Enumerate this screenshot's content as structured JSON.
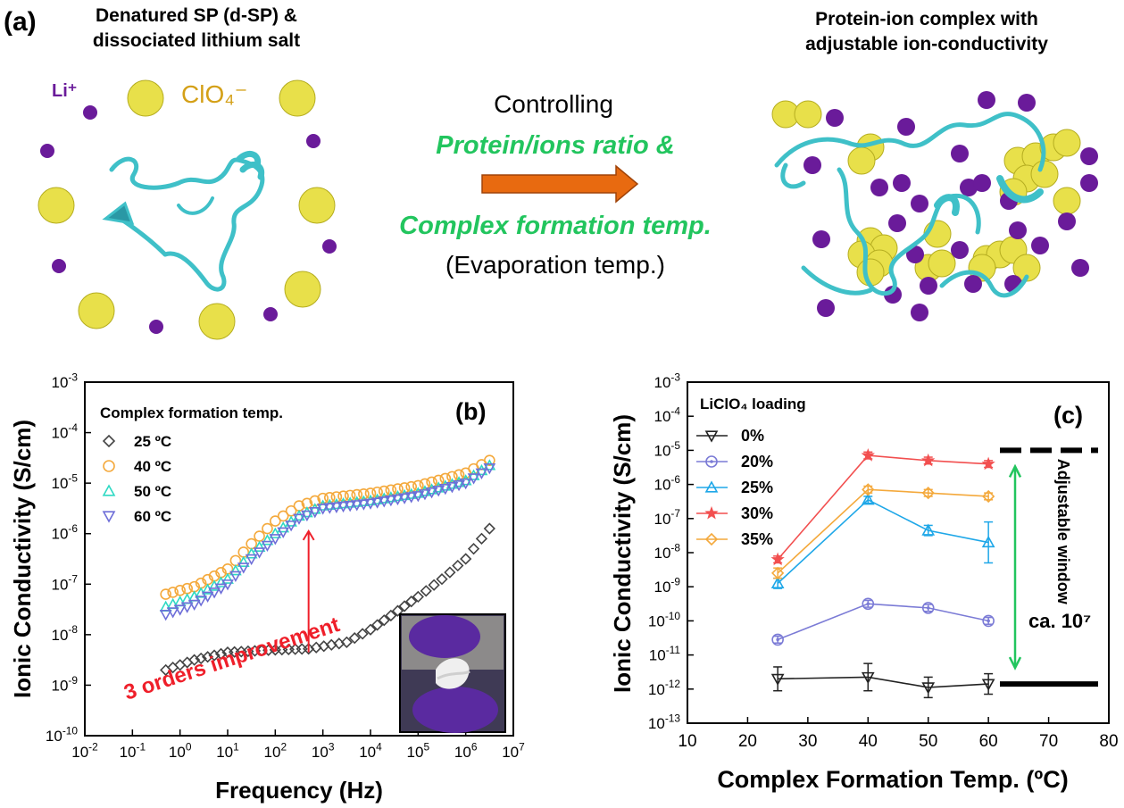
{
  "panel_a": {
    "label": "(a)",
    "left_title": [
      "Denatured SP (d-SP) &",
      "dissociated lithium salt"
    ],
    "li_label": "Li⁺",
    "clo4_label": "ClO₄⁻",
    "arrow_top": "Controlling",
    "arrow_green1": "Protein/ions ratio &",
    "arrow_green2": "Complex formation temp.",
    "arrow_bottom": "(Evaporation temp.)",
    "right_title": [
      "Protein-ion complex with",
      "adjustable ion-conductivity"
    ],
    "colors": {
      "li": "#6a1b9a",
      "clo4": "#e8e04a",
      "protein": "#3fc0c8",
      "arrow": "#e86a10",
      "green_text": "#22c55e",
      "clo4_text": "#d4a017"
    }
  },
  "chart_data": [
    {
      "id": "b",
      "label": "(b)",
      "type": "scatter",
      "xscale": "log",
      "yscale": "log",
      "xlabel": "Frequency (Hz)",
      "ylabel": "Ionic Conductivity (S/cm)",
      "xlim_exp": [
        -2,
        7
      ],
      "ylim_exp": [
        -10,
        -3
      ],
      "x_ticks": [
        "10-2",
        "10-1",
        "100",
        "101",
        "102",
        "103",
        "104",
        "105",
        "106",
        "107"
      ],
      "y_ticks": [
        "10-10",
        "10-9",
        "10-8",
        "10-7",
        "10-6",
        "10-5",
        "10-4",
        "10-3"
      ],
      "legend_title": "Complex formation temp.",
      "legend_position": "top-left",
      "annotation": "3 orders improvement",
      "series": [
        {
          "name": "25 ºC",
          "marker": "diamond",
          "color": "#444444",
          "logx": [
            -0.3,
            0.3,
            1,
            2,
            2.7,
            3.5,
            4,
            5,
            5.5,
            6,
            6.5
          ],
          "logy": [
            -8.7,
            -8.5,
            -8.35,
            -8.3,
            -8.28,
            -8.15,
            -7.9,
            -7.25,
            -6.9,
            -6.5,
            -5.9
          ]
        },
        {
          "name": "40 ºC",
          "marker": "circle",
          "color": "#f4a93c",
          "logx": [
            -0.3,
            0.3,
            1,
            1.5,
            2,
            2.5,
            3,
            4,
            5,
            6,
            6.5
          ],
          "logy": [
            -7.2,
            -7.05,
            -6.7,
            -6.2,
            -5.75,
            -5.45,
            -5.3,
            -5.2,
            -5.05,
            -4.8,
            -4.55
          ]
        },
        {
          "name": "50 ºC",
          "marker": "triangle-up",
          "color": "#2fd9c4",
          "logx": [
            -0.3,
            0.3,
            1,
            1.5,
            2,
            2.5,
            3,
            4,
            5,
            6,
            6.5
          ],
          "logy": [
            -7.45,
            -7.25,
            -6.9,
            -6.4,
            -6.0,
            -5.65,
            -5.45,
            -5.35,
            -5.2,
            -4.95,
            -4.65
          ]
        },
        {
          "name": "60 ºC",
          "marker": "triangle-down",
          "color": "#6e6ed8",
          "logx": [
            -0.3,
            0.3,
            1,
            1.5,
            2,
            2.5,
            3,
            4,
            5,
            6,
            6.5
          ],
          "logy": [
            -7.6,
            -7.4,
            -7.0,
            -6.5,
            -6.1,
            -5.7,
            -5.5,
            -5.4,
            -5.25,
            -5.0,
            -4.7
          ]
        }
      ]
    },
    {
      "id": "c",
      "label": "(c)",
      "type": "line",
      "yscale": "log",
      "xlabel": "Complex Formation Temp. (ºC)",
      "ylabel": "Ionic Conductivity (S/cm)",
      "xlim": [
        10,
        80
      ],
      "ylim_exp": [
        -13,
        -3
      ],
      "x_ticks": [
        "10",
        "20",
        "30",
        "40",
        "50",
        "60",
        "70",
        "80"
      ],
      "y_ticks": [
        "10-13",
        "10-12",
        "10-11",
        "10-10",
        "10-9",
        "10-8",
        "10-7",
        "10-6",
        "10-5",
        "10-4",
        "10-3"
      ],
      "legend_title": "LiClO₄ loading",
      "legend_position": "top-left",
      "x": [
        25,
        40,
        50,
        60
      ],
      "series": [
        {
          "name": "0%",
          "marker": "triangle-down",
          "color": "#222222",
          "logy": [
            -11.7,
            -11.65,
            -11.95,
            -11.85
          ],
          "err": [
            0.35,
            0.4,
            0.3,
            0.3
          ]
        },
        {
          "name": "20%",
          "marker": "circle-dot",
          "color": "#7b7bd6",
          "logy": [
            -10.55,
            -9.5,
            -9.62,
            -10.0
          ],
          "err": [
            0.1,
            0.1,
            0.1,
            0.1
          ]
        },
        {
          "name": "25%",
          "marker": "triangle-up",
          "color": "#1ea7e8",
          "logy": [
            -8.9,
            -6.45,
            -7.35,
            -7.7
          ],
          "err": [
            0.15,
            0.1,
            0.15,
            0.6
          ]
        },
        {
          "name": "30%",
          "marker": "star",
          "color": "#f24f4f",
          "logy": [
            -8.2,
            -5.15,
            -5.3,
            -5.4
          ],
          "err": [
            0.1,
            0.1,
            0.1,
            0.1
          ]
        },
        {
          "name": "35%",
          "marker": "diamond",
          "color": "#f4a93c",
          "logy": [
            -8.6,
            -6.15,
            -6.25,
            -6.35
          ],
          "err": [
            0.15,
            0.1,
            0.1,
            0.1
          ]
        }
      ],
      "window_label": "Adjustable window",
      "window_value": "ca. 10⁷",
      "window_top_logy": -5,
      "window_bottom_logy": -11.85
    }
  ]
}
